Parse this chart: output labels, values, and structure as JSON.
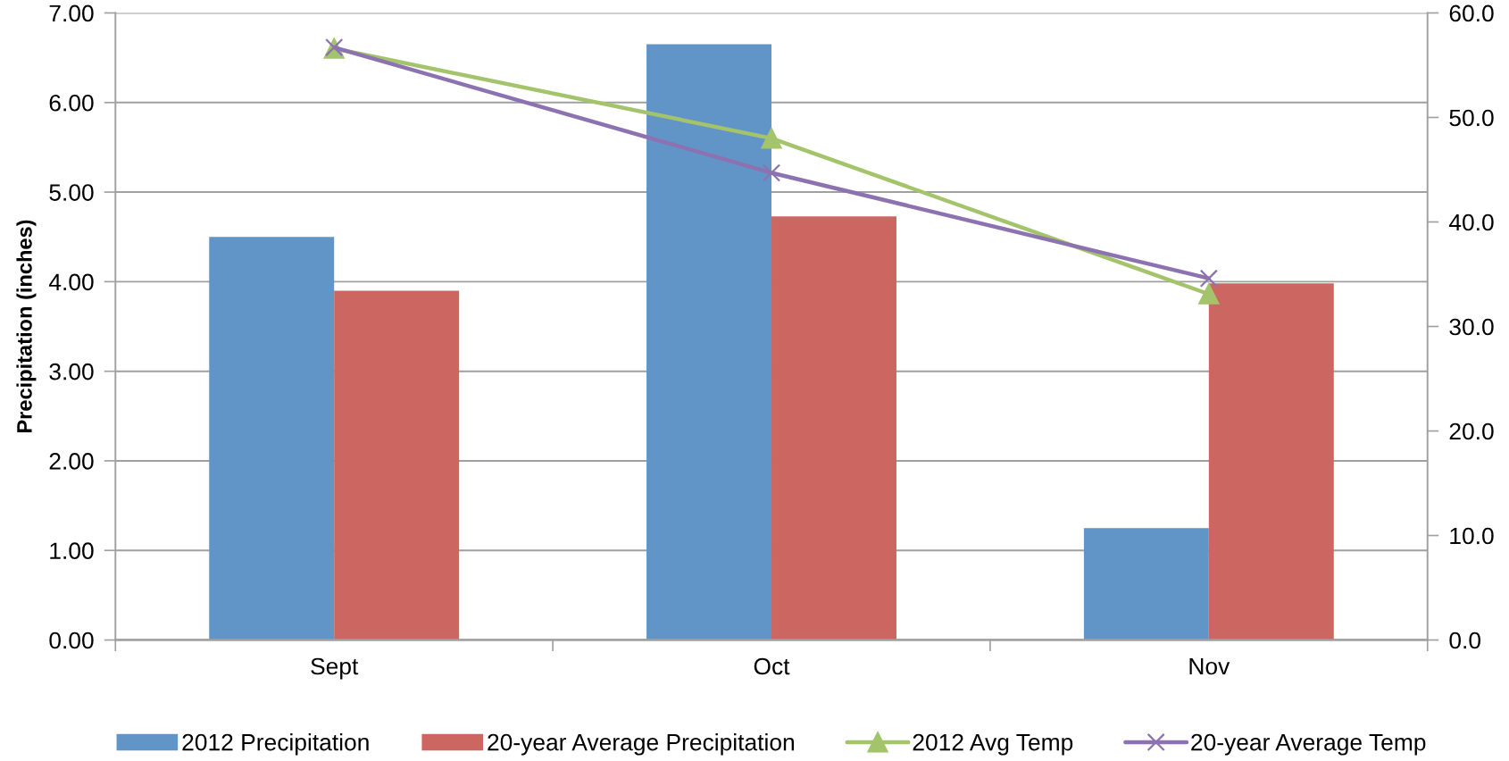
{
  "chart_data": {
    "type": "bar",
    "categories": [
      "Sept",
      "Oct",
      "Nov"
    ],
    "ylabel": "Precipitation (inches)",
    "ylim": [
      0,
      7
    ],
    "yticks": [
      {
        "value": 0,
        "label": "0.00"
      },
      {
        "value": 1,
        "label": "1.00"
      },
      {
        "value": 2,
        "label": "2.00"
      },
      {
        "value": 3,
        "label": "3.00"
      },
      {
        "value": 4,
        "label": "4.00"
      },
      {
        "value": 5,
        "label": "5.00"
      },
      {
        "value": 6,
        "label": "6.00"
      },
      {
        "value": 7,
        "label": "7.00"
      }
    ],
    "y2lim": [
      0,
      60
    ],
    "y2ticks": [
      {
        "value": 0,
        "label": "0.0"
      },
      {
        "value": 10,
        "label": "10.0"
      },
      {
        "value": 20,
        "label": "20.0"
      },
      {
        "value": 30,
        "label": "30.0"
      },
      {
        "value": 40,
        "label": "40.0"
      },
      {
        "value": 50,
        "label": "50.0"
      },
      {
        "value": 60,
        "label": "60.0"
      }
    ],
    "grid": "y",
    "legend": "bottom",
    "series": [
      {
        "name": "2012 Precipitation",
        "color": "#6195c8",
        "values": [
          4.5,
          6.65,
          1.25
        ]
      },
      {
        "name": "20-year Average Precipitation",
        "color": "#cc6660",
        "values": [
          3.9,
          4.73,
          3.98
        ]
      },
      {
        "type": "line",
        "axis": "y2",
        "name": "2012 Avg Temp",
        "color": "#a3c46a",
        "marker": "triangle",
        "values": [
          56.6,
          48.0,
          33.1
        ]
      },
      {
        "type": "line",
        "axis": "y2",
        "name": "20-year Average Temp",
        "color": "#8d72b2",
        "marker": "cross",
        "values": [
          56.7,
          44.7,
          34.6
        ]
      }
    ]
  }
}
